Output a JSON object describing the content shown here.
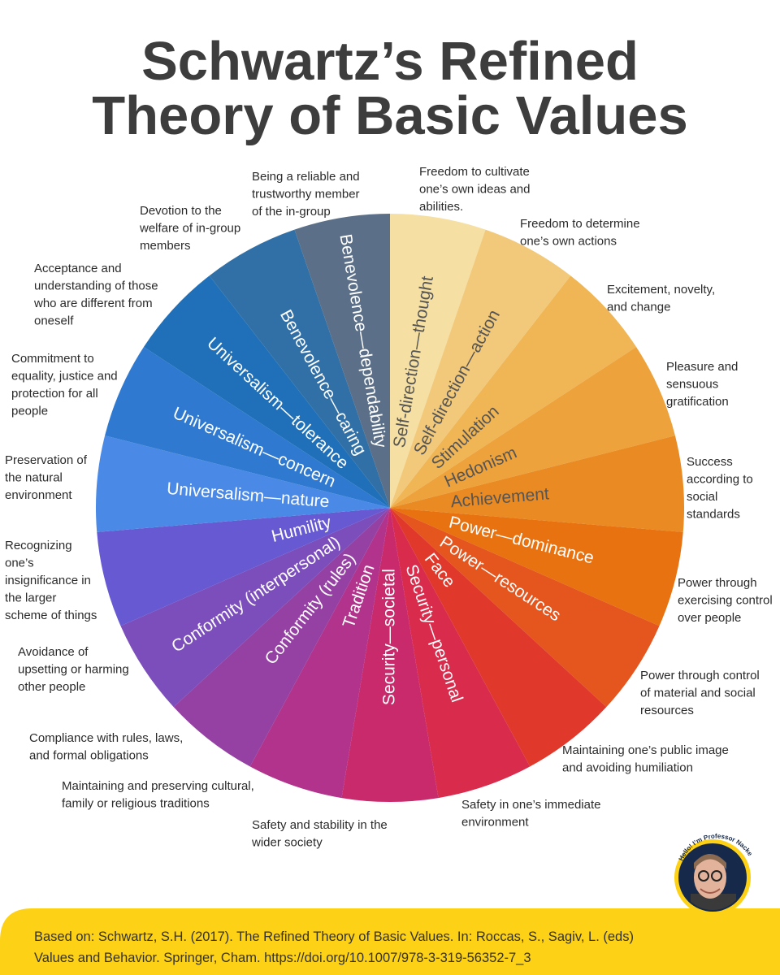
{
  "title": [
    "Schwartz’s Refined",
    "Theory of Basic Values"
  ],
  "segments": [
    {
      "label": "Self-direction—thought",
      "color": "#f5dfa2",
      "text_color": "#555555",
      "description": [
        "Freedom to cultivate",
        "one’s own ideas and",
        "abilities."
      ]
    },
    {
      "label": "Self-direction—action",
      "color": "#f2c97a",
      "text_color": "#555555",
      "description": [
        "Freedom to determine",
        "one’s own actions"
      ]
    },
    {
      "label": "Stimulation",
      "color": "#f0b555",
      "text_color": "#555555",
      "description": [
        "Excitement, novelty,",
        "and change"
      ]
    },
    {
      "label": "Hedonism",
      "color": "#eea23c",
      "text_color": "#555555",
      "description": [
        "Pleasure and",
        "sensuous",
        "gratification"
      ]
    },
    {
      "label": "Achievement",
      "color": "#ea8a22",
      "text_color": "#555555",
      "description": [
        "Success",
        "according to",
        "social",
        "standards"
      ]
    },
    {
      "label": "Power—dominance",
      "color": "#e8720f",
      "text_color": "#ffffff",
      "description": [
        "Power through",
        "exercising control",
        "over people"
      ]
    },
    {
      "label": "Power—resources",
      "color": "#e5551e",
      "text_color": "#ffffff",
      "description": [
        "Power through control",
        "of material and social",
        "resources"
      ]
    },
    {
      "label": "Face",
      "color": "#e0392b",
      "text_color": "#ffffff",
      "description": [
        "Maintaining one’s public image",
        "and avoiding humiliation"
      ]
    },
    {
      "label": "Security—personal",
      "color": "#d92b4b",
      "text_color": "#ffffff",
      "description": [
        "Safety in one’s immediate",
        "environment"
      ]
    },
    {
      "label": "Security—societal",
      "color": "#c92a6c",
      "text_color": "#ffffff",
      "description": [
        "Safety and stability in the",
        "wider society"
      ]
    },
    {
      "label": "Tradition",
      "color": "#b1338b",
      "text_color": "#ffffff",
      "description": [
        "Maintaining and preserving cultural,",
        "family or religious traditions"
      ]
    },
    {
      "label": "Conformity (rules)",
      "color": "#9441a3",
      "text_color": "#ffffff",
      "description": [
        "Compliance with rules, laws,",
        "and formal obligations"
      ]
    },
    {
      "label": "Conformity (interpersonal)",
      "color": "#7b4ebc",
      "text_color": "#ffffff",
      "description": [
        "Avoidance of",
        "upsetting or harming",
        "other people"
      ]
    },
    {
      "label": "Humility",
      "color": "#6659d2",
      "text_color": "#ffffff",
      "description": [
        "Recognizing",
        "one’s",
        "insignificance in",
        "the larger",
        "scheme of things"
      ]
    },
    {
      "label": "Universalism—nature",
      "color": "#4a8ae6",
      "text_color": "#ffffff",
      "description": [
        "Preservation of",
        "the natural",
        "environment"
      ]
    },
    {
      "label": "Universalism—concern",
      "color": "#2f7ad0",
      "text_color": "#ffffff",
      "description": [
        "Commitment to",
        "equality, justice and",
        "protection for all",
        "people"
      ]
    },
    {
      "label": "Universalism—tolerance",
      "color": "#1f70b8",
      "text_color": "#ffffff",
      "description": [
        "Acceptance and",
        "understanding of those",
        "who are different from",
        "oneself"
      ]
    },
    {
      "label": "Benevolence—caring",
      "color": "#3170a6",
      "text_color": "#ffffff",
      "description": [
        "Devotion to the",
        "welfare of in-group",
        "members"
      ]
    },
    {
      "label": "Benevolence—dependability",
      "color": "#5b7088",
      "text_color": "#ffffff",
      "description": [
        "Being a reliable and",
        "trustworthy member",
        "of the in-group"
      ]
    }
  ],
  "badge": "Hello! I’m Professor Nacke",
  "citation": [
    "Based on: Schwartz, S.H. (2017). The Refined Theory of Basic Values. In: Roccas, S., Sagiv, L. (eds)",
    "Values and Behavior. Springer, Cham. https://doi.org/10.1007/978-3-319-56352-7_3"
  ]
}
